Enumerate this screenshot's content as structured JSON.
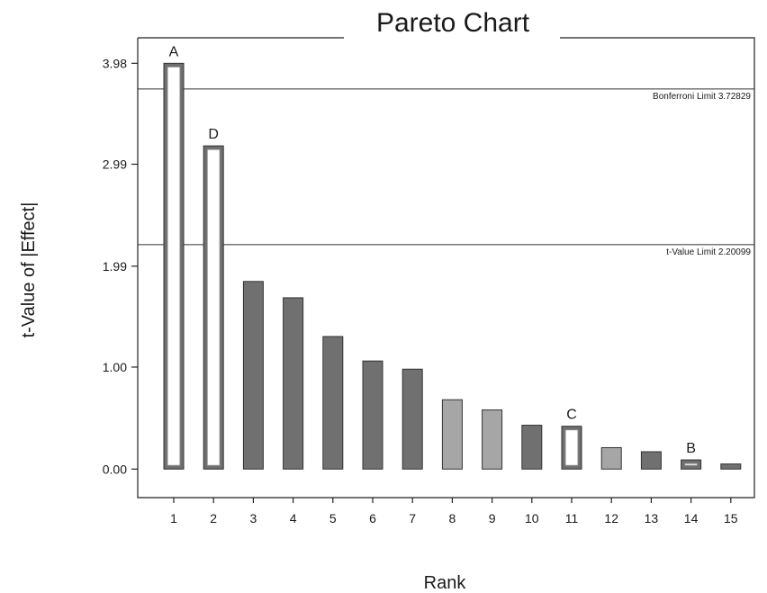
{
  "chart_data": {
    "type": "bar",
    "title": "Pareto Chart",
    "xlabel": "Rank",
    "ylabel": "t-Value of |Effect|",
    "ylim": [
      -0.28,
      4.23
    ],
    "yticks": [
      "0.00",
      "1.00",
      "1.99",
      "2.99",
      "3.98"
    ],
    "ytick_values": [
      0.0,
      1.0,
      1.99,
      2.99,
      3.98
    ],
    "categories": [
      "1",
      "2",
      "3",
      "4",
      "5",
      "6",
      "7",
      "8",
      "9",
      "10",
      "11",
      "12",
      "13",
      "14",
      "15"
    ],
    "values": [
      3.98,
      3.17,
      1.84,
      1.68,
      1.3,
      1.06,
      0.98,
      0.68,
      0.58,
      0.43,
      0.42,
      0.21,
      0.17,
      0.09,
      0.05
    ],
    "bar_labels": [
      "A",
      "D",
      "",
      "",
      "",
      "",
      "",
      "",
      "",
      "",
      "C",
      "",
      "",
      "B",
      ""
    ],
    "bar_style": [
      "outlined",
      "outlined",
      "dark",
      "dark",
      "dark",
      "dark",
      "dark",
      "light",
      "light",
      "dark",
      "outlined",
      "light",
      "dark",
      "outlined",
      "dark"
    ],
    "limits": [
      {
        "label": "Bonferroni Limit 3.72829",
        "value": 3.72829
      },
      {
        "label": "t-Value Limit 2.20099",
        "value": 2.20099
      }
    ],
    "grid": false
  },
  "colors": {
    "dark_bar": "#707070",
    "light_bar": "#a6a6a6",
    "outline_bar": "#6e6e6e",
    "outline_inner": "#ffffff",
    "axis": "#222222"
  }
}
